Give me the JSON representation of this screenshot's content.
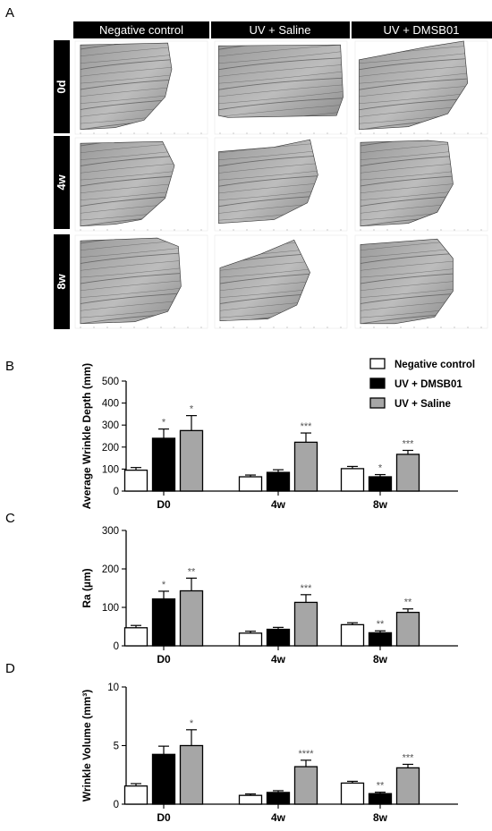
{
  "panel_labels": [
    "A",
    "B",
    "C",
    "D"
  ],
  "image_panel": {
    "columns": [
      "Negative control",
      "UV + Saline",
      "UV + DMSB01"
    ],
    "rows": [
      "0d",
      "4w",
      "8w"
    ]
  },
  "legend": [
    {
      "name": "Negative control",
      "color": "#ffffff"
    },
    {
      "name": "UV + DMSB01",
      "color": "#000000"
    },
    {
      "name": "UV + Saline",
      "color": "#a6a6a6"
    }
  ],
  "chart_data": [
    {
      "type": "bar",
      "panel": "B",
      "categories": [
        "D0",
        "4w",
        "8w"
      ],
      "ylabel": "Average Wrinkle Depth (mm)",
      "ylim": [
        0,
        500
      ],
      "yticks": [
        0,
        100,
        200,
        300,
        400,
        500
      ],
      "series": [
        {
          "name": "Negative control",
          "color": "#ffffff",
          "values": [
            95,
            65,
            102
          ],
          "errors": [
            12,
            8,
            10
          ],
          "sig": [
            "",
            "",
            ""
          ]
        },
        {
          "name": "UV + DMSB01",
          "color": "#000000",
          "values": [
            240,
            85,
            65
          ],
          "errors": [
            42,
            12,
            10
          ],
          "sig": [
            "*",
            "",
            "*"
          ]
        },
        {
          "name": "UV + Saline",
          "color": "#a6a6a6",
          "values": [
            275,
            222,
            167
          ],
          "errors": [
            68,
            42,
            18
          ],
          "sig": [
            "*",
            "***",
            "***"
          ]
        }
      ]
    },
    {
      "type": "bar",
      "panel": "C",
      "categories": [
        "D0",
        "4w",
        "8w"
      ],
      "ylabel": "Ra (µm)",
      "ylim": [
        0,
        300
      ],
      "yticks": [
        0,
        100,
        200,
        300
      ],
      "series": [
        {
          "name": "Negative control",
          "color": "#ffffff",
          "values": [
            47,
            33,
            55
          ],
          "errors": [
            6,
            5,
            5
          ],
          "sig": [
            "",
            "",
            ""
          ]
        },
        {
          "name": "UV + DMSB01",
          "color": "#000000",
          "values": [
            122,
            43,
            34
          ],
          "errors": [
            20,
            5,
            5
          ],
          "sig": [
            "*",
            "",
            "**"
          ]
        },
        {
          "name": "UV + Saline",
          "color": "#a6a6a6",
          "values": [
            143,
            113,
            87
          ],
          "errors": [
            33,
            20,
            9
          ],
          "sig": [
            "**",
            "***",
            "**"
          ]
        }
      ]
    },
    {
      "type": "bar",
      "panel": "D",
      "categories": [
        "D0",
        "4w",
        "8w"
      ],
      "ylabel": "Wrinkle Volume (mm³)",
      "ylim": [
        0,
        10
      ],
      "yticks": [
        0,
        5,
        10
      ],
      "series": [
        {
          "name": "Negative control",
          "color": "#ffffff",
          "values": [
            1.55,
            0.75,
            1.8
          ],
          "errors": [
            0.2,
            0.12,
            0.15
          ],
          "sig": [
            "",
            "",
            ""
          ]
        },
        {
          "name": "UV + DMSB01",
          "color": "#000000",
          "values": [
            4.25,
            1.0,
            0.9
          ],
          "errors": [
            0.7,
            0.15,
            0.12
          ],
          "sig": [
            "",
            "",
            "**"
          ]
        },
        {
          "name": "UV + Saline",
          "color": "#a6a6a6",
          "values": [
            5.0,
            3.2,
            3.1
          ],
          "errors": [
            1.35,
            0.55,
            0.3
          ],
          "sig": [
            "*",
            "****",
            "***"
          ]
        }
      ]
    }
  ]
}
